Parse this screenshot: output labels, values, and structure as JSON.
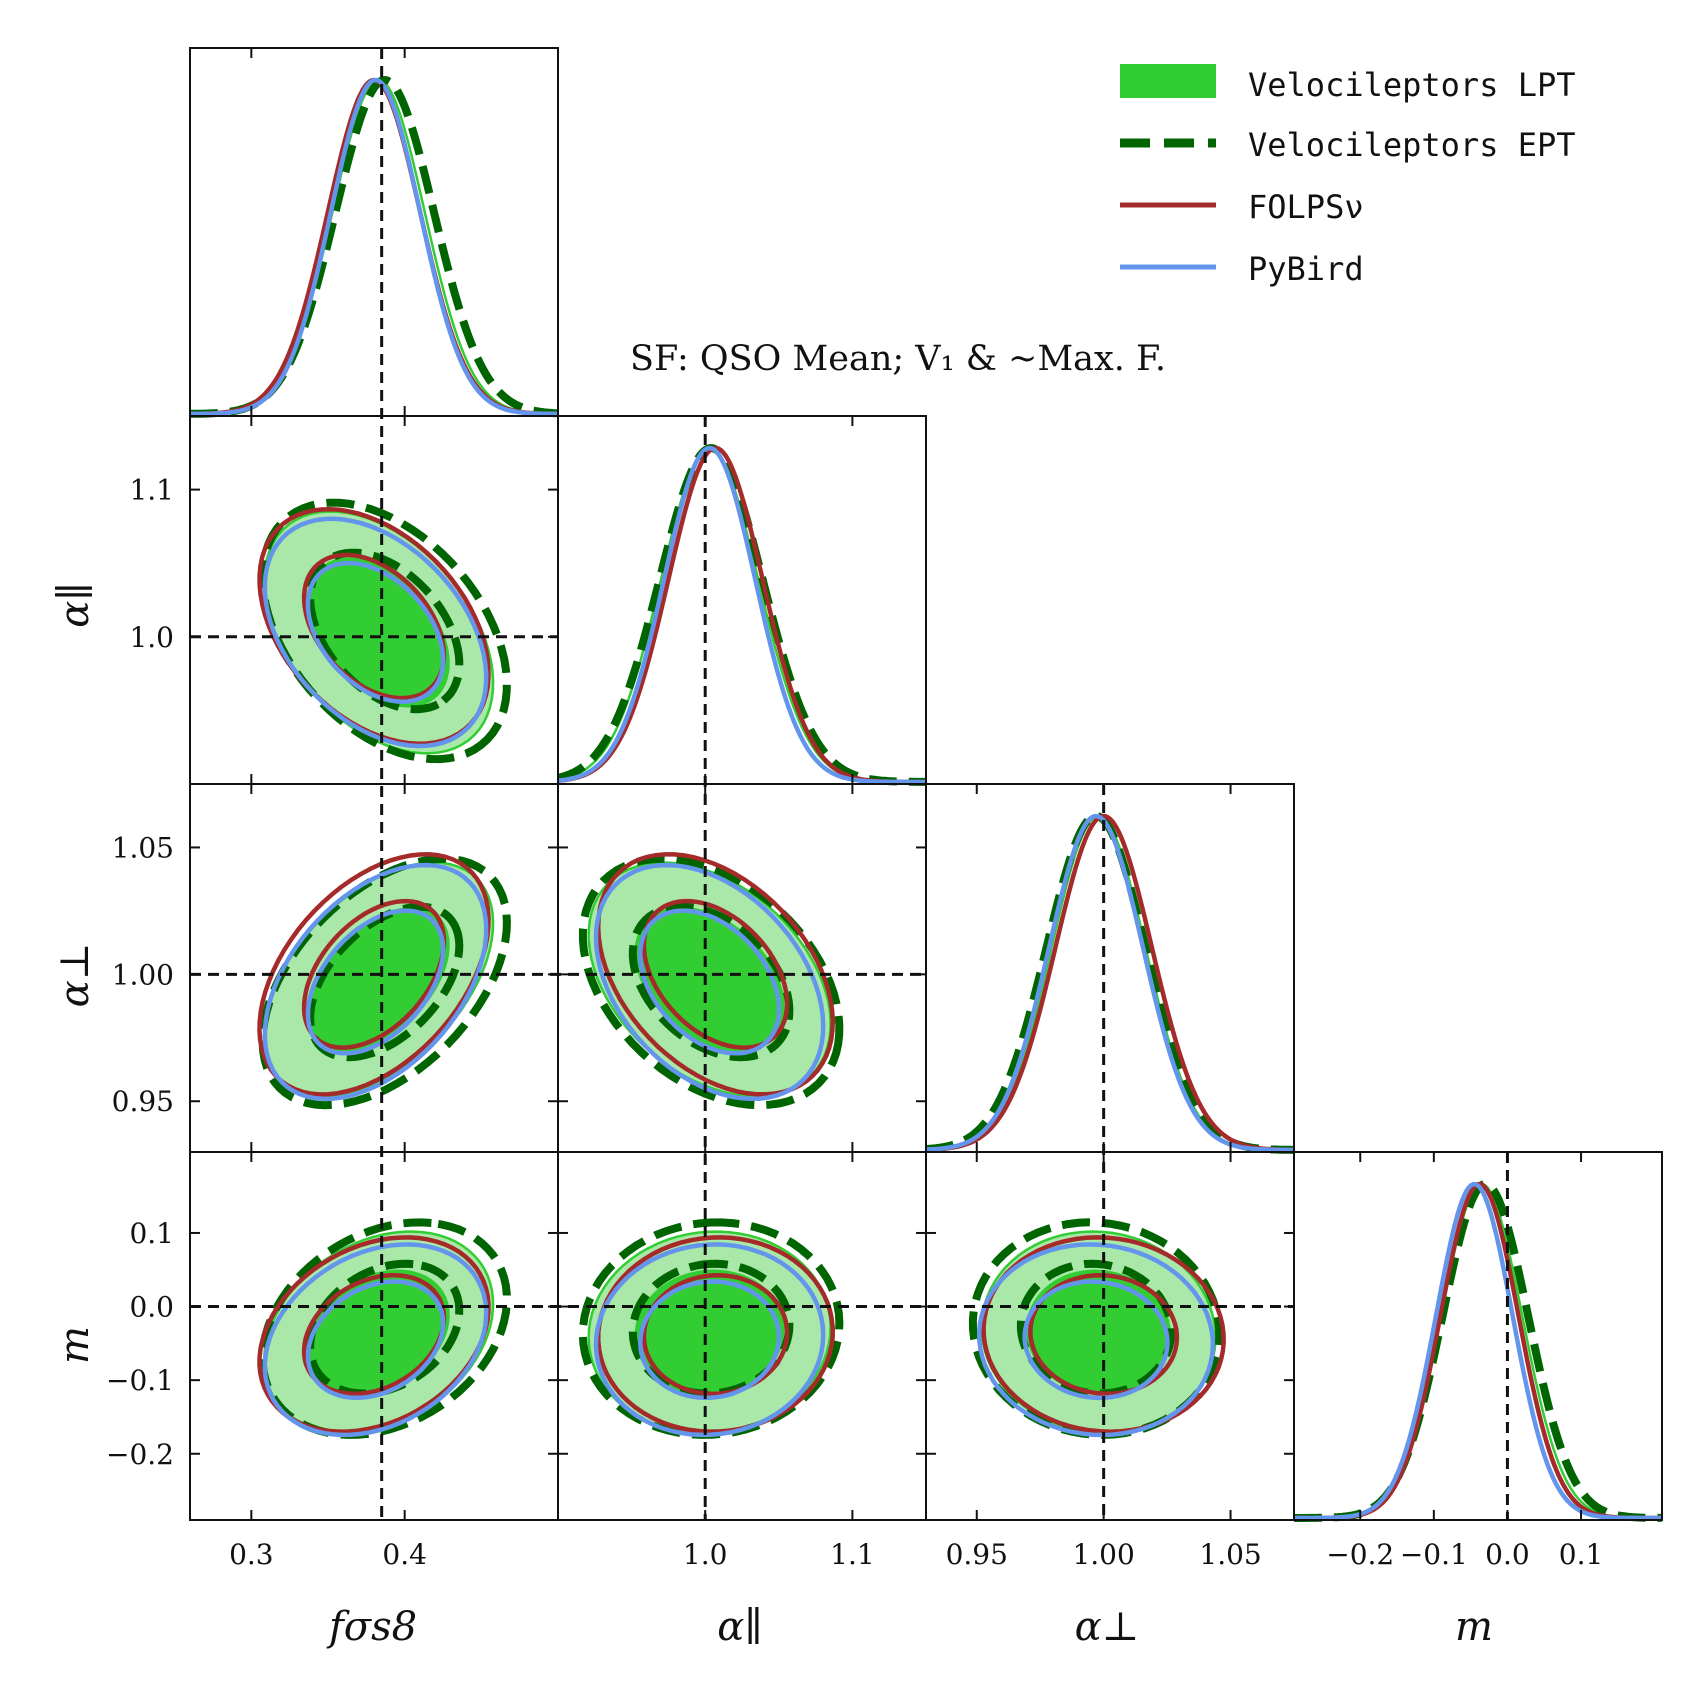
{
  "chart_data": {
    "type": "corner",
    "title": "SF: QSO Mean; V₁ &  ~Max. F.",
    "parameters": [
      {
        "id": "fs8",
        "label": "fσs8",
        "range": [
          0.26,
          0.5
        ],
        "truth": 0.385,
        "ticks": [
          {
            "v": 0.3,
            "t": "0.3"
          },
          {
            "v": 0.4,
            "t": "0.4"
          }
        ]
      },
      {
        "id": "apar",
        "label": "α∥",
        "range": [
          0.9,
          1.15
        ],
        "truth": 1.0,
        "ticks": [
          {
            "v": 1.0,
            "t": "1.0"
          },
          {
            "v": 1.1,
            "t": "1.1"
          }
        ]
      },
      {
        "id": "aper",
        "label": "α⊥",
        "range": [
          0.93,
          1.075
        ],
        "truth": 1.0,
        "ticks": [
          {
            "v": 0.95,
            "t": "0.95"
          },
          {
            "v": 1.0,
            "t": "1.00"
          },
          {
            "v": 1.05,
            "t": "1.05"
          }
        ]
      },
      {
        "id": "m",
        "label": "m",
        "range": [
          -0.29,
          0.21
        ],
        "truth": 0.0,
        "ticks": [
          {
            "v": -0.2,
            "t": "−0.2"
          },
          {
            "v": -0.1,
            "t": "−0.1"
          },
          {
            "v": 0.0,
            "t": "0.0"
          },
          {
            "v": 0.1,
            "t": "0.1"
          }
        ]
      }
    ],
    "row_tick_labels": {
      "apar": [
        {
          "v": 1.0,
          "t": "1.0"
        },
        {
          "v": 1.1,
          "t": "1.1"
        }
      ],
      "aper": [
        {
          "v": 0.95,
          "t": "0.95"
        },
        {
          "v": 1.0,
          "t": "1.00"
        },
        {
          "v": 1.05,
          "t": "1.05"
        }
      ],
      "m": [
        {
          "v": -0.2,
          "t": "−0.2"
        },
        {
          "v": -0.1,
          "t": "−0.1"
        },
        {
          "v": 0.0,
          "t": "0.0"
        },
        {
          "v": 0.1,
          "t": "0.1"
        }
      ]
    },
    "series": [
      {
        "name": "Velocileptors LPT",
        "color": "#32cd32",
        "fill_outer": "#a9e8a9",
        "style": "filled",
        "mean": {
          "fs8": 0.383,
          "apar": 1.003,
          "aper": 0.998,
          "m": -0.035
        },
        "sigma": {
          "fs8": 0.03,
          "apar": 0.033,
          "aper": 0.0185,
          "m": 0.055
        },
        "corr": {
          "fs8|apar": -0.42,
          "fs8|aper": 0.48,
          "apar|aper": -0.38,
          "fs8|m": 0.28,
          "apar|m": 0.05,
          "aper|m": -0.05
        }
      },
      {
        "name": "Velocileptors EPT",
        "color": "#006400",
        "style": "dashed",
        "mean": {
          "fs8": 0.387,
          "apar": 1.004,
          "aper": 0.997,
          "m": -0.03
        },
        "sigma": {
          "fs8": 0.032,
          "apar": 0.035,
          "aper": 0.0195,
          "m": 0.058
        },
        "corr": {
          "fs8|apar": -0.42,
          "fs8|aper": 0.48,
          "apar|aper": -0.38,
          "fs8|m": 0.28,
          "apar|m": 0.05,
          "aper|m": -0.05
        }
      },
      {
        "name": "FOLPSν",
        "color": "#a52a2a",
        "style": "line",
        "mean": {
          "fs8": 0.38,
          "apar": 1.007,
          "aper": 1.0,
          "m": -0.038
        },
        "sigma": {
          "fs8": 0.03,
          "apar": 0.032,
          "aper": 0.019,
          "m": 0.053
        },
        "corr": {
          "fs8|apar": -0.4,
          "fs8|aper": 0.45,
          "apar|aper": -0.4,
          "fs8|m": 0.28,
          "apar|m": 0.03,
          "aper|m": -0.05
        }
      },
      {
        "name": "PyBird",
        "color": "#6495ed",
        "style": "line",
        "mean": {
          "fs8": 0.381,
          "apar": 1.003,
          "aper": 0.997,
          "m": -0.045
        },
        "sigma": {
          "fs8": 0.029,
          "apar": 0.031,
          "aper": 0.0185,
          "m": 0.052
        },
        "corr": {
          "fs8|apar": -0.4,
          "fs8|aper": 0.45,
          "apar|aper": -0.38,
          "fs8|m": 0.28,
          "apar|m": 0.05,
          "aper|m": -0.05
        }
      }
    ],
    "legend_position": "top-right",
    "truth_line_style": "dashed-black"
  }
}
